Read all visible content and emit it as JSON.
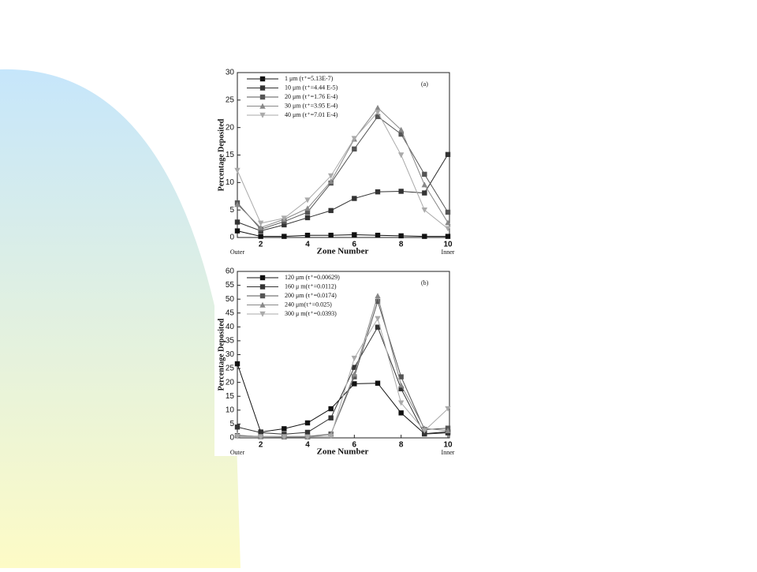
{
  "chart_data": [
    {
      "type": "line",
      "panel_label": "(a)",
      "y_label": "Percentage Deposited",
      "x_label": "Zone Number",
      "x_left_label": "Outer",
      "x_right_label": "Inner",
      "x": [
        1,
        2,
        3,
        4,
        5,
        6,
        7,
        8,
        9,
        10
      ],
      "xlim": [
        1,
        10
      ],
      "xticks": [
        2,
        4,
        6,
        8,
        10
      ],
      "ylim": [
        0,
        30
      ],
      "yticks": [
        0,
        5,
        10,
        15,
        20,
        25,
        30
      ],
      "series": [
        {
          "name": "1   μm (τ⁺=5.13E-7)",
          "color": "#111111",
          "marker": "square",
          "values": [
            1.2,
            0.2,
            0.2,
            0.4,
            0.4,
            0.5,
            0.4,
            0.3,
            0.2,
            0.2
          ]
        },
        {
          "name": "10  μm (τ⁺=4.44 E-5)",
          "color": "#333333",
          "marker": "square",
          "values": [
            2.8,
            1.2,
            2.3,
            3.6,
            4.9,
            7.1,
            8.3,
            8.4,
            8.1,
            15.1
          ]
        },
        {
          "name": "20  μm (τ⁺=1.76 E-4)",
          "color": "#555555",
          "marker": "square",
          "values": [
            6.3,
            1.5,
            2.9,
            4.6,
            9.9,
            16.1,
            22.0,
            18.8,
            11.5,
            4.6
          ]
        },
        {
          "name": "30  μm (τ⁺=3.95 E-4)",
          "color": "#888888",
          "marker": "triangle",
          "values": [
            6.0,
            1.8,
            3.3,
            5.3,
            10.2,
            17.9,
            23.6,
            19.6,
            9.6,
            2.7
          ]
        },
        {
          "name": "40  μm (τ⁺=7.01 E-4)",
          "color": "#aaaaaa",
          "marker": "triangle-down",
          "values": [
            12.2,
            2.6,
            3.5,
            6.8,
            11.2,
            18.0,
            22.8,
            15.0,
            5.0,
            1.6
          ]
        }
      ]
    },
    {
      "type": "line",
      "panel_label": "(b)",
      "y_label": "Percentage Deposited",
      "x_label": "Zone Number",
      "x_left_label": "Outer",
      "x_right_label": "Inner",
      "x": [
        1,
        2,
        3,
        4,
        5,
        6,
        7,
        8,
        9,
        10
      ],
      "xlim": [
        1,
        10
      ],
      "xticks": [
        2,
        4,
        6,
        8,
        10
      ],
      "ylim": [
        0,
        60
      ],
      "yticks": [
        0,
        5,
        10,
        15,
        20,
        25,
        30,
        35,
        40,
        45,
        50,
        55,
        60
      ],
      "series": [
        {
          "name": "120 μm (τ⁺=0.00629)",
          "color": "#111111",
          "marker": "square",
          "values": [
            26.7,
            2.1,
            3.3,
            5.4,
            10.5,
            19.5,
            19.7,
            9.0,
            1.5,
            2.2
          ]
        },
        {
          "name": "160 μ m(τ⁺=0.0112)",
          "color": "#333333",
          "marker": "square",
          "values": [
            3.9,
            1.9,
            1.3,
            2.0,
            7.2,
            25.4,
            39.9,
            17.7,
            1.4,
            1.8
          ]
        },
        {
          "name": "200 μm (τ⁺=0.0174)",
          "color": "#555555",
          "marker": "square",
          "values": [
            0.8,
            0.5,
            0.5,
            0.5,
            1.4,
            22.0,
            49.2,
            22.0,
            3.0,
            3.5
          ]
        },
        {
          "name": "240 μm(τ⁺=0.025)",
          "color": "#888888",
          "marker": "triangle",
          "values": [
            1.0,
            0.4,
            0.3,
            0.3,
            1.3,
            23.0,
            51.2,
            19.0,
            3.4,
            2.6
          ]
        },
        {
          "name": "300 μ m(τ⁺=0.0393)",
          "color": "#aaaaaa",
          "marker": "triangle-down",
          "values": [
            0.5,
            0.4,
            0.4,
            0.3,
            0.6,
            28.7,
            43.0,
            12.6,
            2.6,
            10.5
          ]
        }
      ]
    }
  ]
}
